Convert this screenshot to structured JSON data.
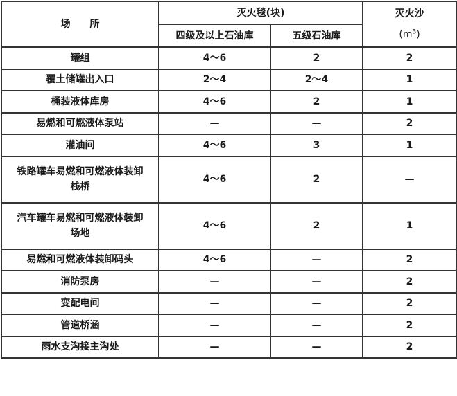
{
  "header": {
    "place": "场　　所",
    "blanket": "灭火毯(块)",
    "blanket_sub": [
      "四级及以上石油库",
      "五级石油库"
    ],
    "sand": "灭火沙",
    "sand_unit_open": "(m",
    "sand_unit_sup": "3",
    "sand_unit_close": ")"
  },
  "rows": [
    {
      "place": "罐组",
      "level4": "4～6",
      "level5": "2",
      "sand": "2"
    },
    {
      "place": "覆土储罐出入口",
      "level4": "2～4",
      "level5": "2～4",
      "sand": "1"
    },
    {
      "place": "桶装液体库房",
      "level4": "4～6",
      "level5": "2",
      "sand": "1"
    },
    {
      "place": "易燃和可燃液体泵站",
      "level4": "—",
      "level5": "—",
      "sand": "2"
    },
    {
      "place": "灌油间",
      "level4": "4～6",
      "level5": "3",
      "sand": "1"
    },
    {
      "place": "铁路罐车易燃和可燃液体装卸栈桥",
      "level4": "4～6",
      "level5": "2",
      "sand": "—"
    },
    {
      "place": "汽车罐车易燃和可燃液体装卸场地",
      "level4": "4～6",
      "level5": "2",
      "sand": "1"
    },
    {
      "place": "易燃和可燃液体装卸码头",
      "level4": "4～6",
      "level5": "—",
      "sand": "2"
    },
    {
      "place": "消防泵房",
      "level4": "—",
      "level5": "—",
      "sand": "2"
    },
    {
      "place": "变配电间",
      "level4": "—",
      "level5": "—",
      "sand": "2"
    },
    {
      "place": "管道桥涵",
      "level4": "—",
      "level5": "—",
      "sand": "2"
    },
    {
      "place": "雨水支沟接主沟处",
      "level4": "—",
      "level5": "—",
      "sand": "2"
    }
  ]
}
